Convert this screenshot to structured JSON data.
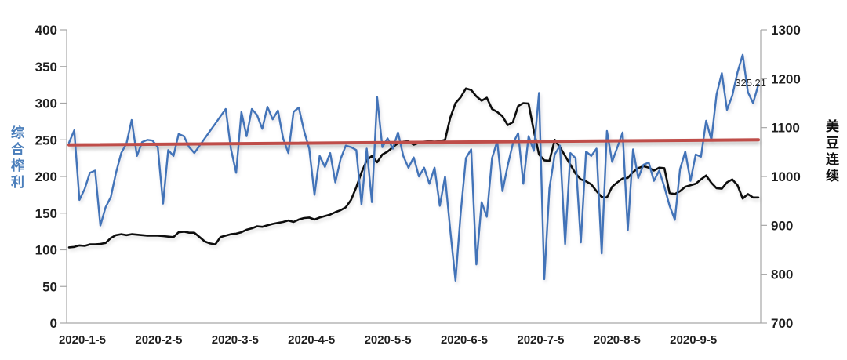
{
  "chart_data": {
    "type": "line",
    "title": "",
    "legend": "none",
    "grid": false,
    "x_tick_labels": [
      "2020-1-5",
      "2020-2-5",
      "2020-3-5",
      "2020-4-5",
      "2020-5-5",
      "2020-6-5",
      "2020-7-5",
      "2020-8-5",
      "2020-9-5"
    ],
    "left_axis": {
      "title": "综合榨利",
      "title_color": "#4a7ebb",
      "min": 0,
      "max": 400,
      "ticks": [
        "0",
        "50",
        "100",
        "150",
        "200",
        "250",
        "300",
        "350",
        "400"
      ]
    },
    "right_axis": {
      "title": "美豆连续",
      "title_color": "#111111",
      "min": 700,
      "max": 1300,
      "ticks": [
        "700",
        "800",
        "900",
        "1000",
        "1100",
        "1200",
        "1300"
      ]
    },
    "series": [
      {
        "name": "综合榨利",
        "axis": "left",
        "color": "#4273b8",
        "width": 2.4,
        "values": [
          246,
          263,
          168,
          183,
          205,
          208,
          133,
          158,
          172,
          205,
          232,
          245,
          277,
          228,
          247,
          250,
          249,
          240,
          163,
          236,
          228,
          258,
          255,
          240,
          232,
          242,
          252,
          262,
          272,
          282,
          292,
          238,
          205,
          288,
          255,
          292,
          284,
          265,
          295,
          278,
          290,
          252,
          232,
          288,
          294,
          262,
          238,
          175,
          228,
          213,
          232,
          192,
          224,
          242,
          240,
          236,
          162,
          238,
          165,
          308,
          240,
          252,
          238,
          260,
          228,
          212,
          226,
          200,
          212,
          190,
          212,
          160,
          200,
          127,
          58,
          150,
          225,
          237,
          80,
          165,
          145,
          225,
          248,
          180,
          215,
          245,
          259,
          190,
          255,
          235,
          314,
          60,
          184,
          230,
          242,
          108,
          232,
          225,
          110,
          234,
          228,
          238,
          95,
          262,
          220,
          240,
          260,
          127,
          237,
          198,
          216,
          219,
          194,
          208,
          186,
          160,
          141,
          210,
          234,
          194,
          230,
          227,
          276,
          250,
          312,
          341,
          291,
          310,
          342,
          366,
          315,
          300,
          325.21
        ]
      },
      {
        "name": "美豆连续",
        "axis": "right",
        "color": "#0d0d0d",
        "width": 2.6,
        "values": [
          855,
          856,
          859,
          858,
          861,
          861,
          862,
          864,
          874,
          880,
          882,
          880,
          882,
          881,
          880,
          879,
          879,
          879,
          878,
          877,
          876,
          886,
          887,
          885,
          885,
          876,
          867,
          863,
          861,
          876,
          879,
          882,
          883,
          886,
          891,
          894,
          898,
          897,
          900,
          903,
          905,
          907,
          910,
          907,
          912,
          915,
          916,
          912,
          916,
          919,
          922,
          927,
          931,
          937,
          952,
          978,
          1008,
          1033,
          1042,
          1029,
          1045,
          1051,
          1060,
          1068,
          1071,
          1072,
          1065,
          1069,
          1071,
          1072,
          1071,
          1072,
          1075,
          1120,
          1150,
          1162,
          1180,
          1177,
          1164,
          1155,
          1161,
          1138,
          1132,
          1123,
          1105,
          1111,
          1144,
          1150,
          1149,
          1093,
          1045,
          1033,
          1032,
          1075,
          1060,
          1042,
          1024,
          1006,
          994,
          990,
          984,
          970,
          958,
          957,
          979,
          988,
          996,
          997,
          1009,
          1017,
          1021,
          1018,
          1012,
          1018,
          1017,
          966,
          964,
          970,
          979,
          982,
          985,
          994,
          1002,
          987,
          976,
          975,
          988,
          994,
          982,
          955,
          964,
          957,
          957
        ]
      },
      {
        "name": "趋势线",
        "axis": "left",
        "color": "#bf4d49",
        "width": 4,
        "trend": true,
        "values": [
          243,
          250
        ]
      }
    ],
    "annotation": {
      "text": "325.21",
      "value": 325.21,
      "series": "综合榨利",
      "color": "#262626"
    }
  }
}
